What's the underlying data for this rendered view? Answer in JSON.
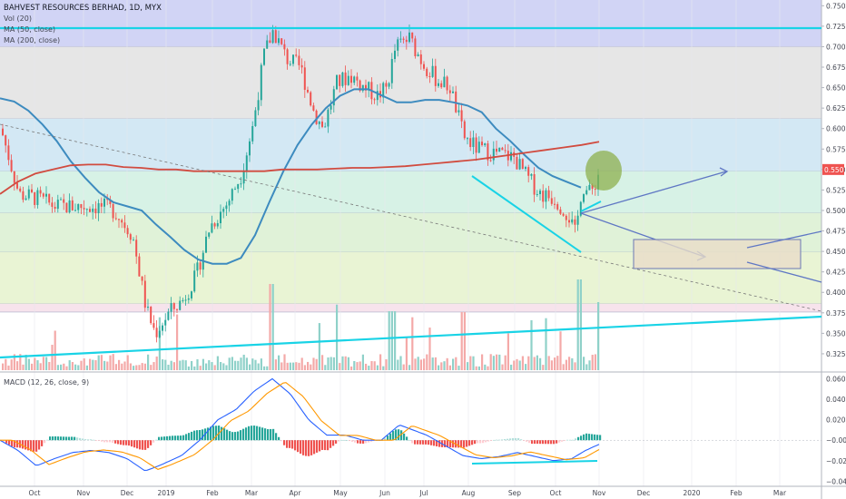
{
  "chart_data": {
    "type": "candlestick",
    "title": "BAHVEST RESOURCES BERHAD, 1D, MYX",
    "indicators": [
      "Vol (20)",
      "MA (50, close)",
      "MA (200, close)"
    ],
    "macd_label": "MACD (12, 26, close, 9)",
    "price_axis": {
      "ticks": [
        "0.750",
        "0.725",
        "0.700",
        "0.675",
        "0.650",
        "0.625",
        "0.600",
        "0.575",
        "0.550",
        "0.525",
        "0.500",
        "0.475",
        "0.450",
        "0.425",
        "0.400",
        "0.375",
        "0.350",
        "0.325"
      ],
      "last_price": "0.550",
      "ylim": [
        0.305,
        0.757
      ]
    },
    "macd_axis": {
      "ticks": [
        "0.060",
        "0.040",
        "0.020",
        "−0.000",
        "−0.020",
        "−0.040"
      ],
      "ylim": [
        -0.045,
        0.064
      ]
    },
    "time_axis": [
      "Oct",
      "Nov",
      "Dec",
      "2019",
      "Feb",
      "Mar",
      "Apr",
      "May",
      "Jun",
      "Jul",
      "Aug",
      "Sep",
      "Oct",
      "Nov",
      "Dec",
      "2020",
      "Feb",
      "Mar"
    ],
    "zones": [
      {
        "from": 0.7,
        "to": 0.757,
        "color": "#d1d4f5"
      },
      {
        "from": 0.612,
        "to": 0.7,
        "color": "#e6e6e6"
      },
      {
        "from": 0.548,
        "to": 0.612,
        "color": "#d3e8f4"
      },
      {
        "from": 0.497,
        "to": 0.548,
        "color": "#d7f2e6"
      },
      {
        "from": 0.449,
        "to": 0.497,
        "color": "#e0f2d8"
      },
      {
        "from": 0.386,
        "to": 0.449,
        "color": "#e9f4d4"
      },
      {
        "from": 0.376,
        "to": 0.386,
        "color": "#f7e3ec"
      }
    ],
    "ma50": [
      0.637,
      0.633,
      0.622,
      0.605,
      0.585,
      0.56,
      0.54,
      0.522,
      0.51,
      0.505,
      0.5,
      0.483,
      0.468,
      0.452,
      0.44,
      0.435,
      0.435,
      0.442,
      0.47,
      0.51,
      0.548,
      0.58,
      0.605,
      0.625,
      0.64,
      0.648,
      0.648,
      0.64,
      0.632,
      0.632,
      0.635,
      0.635,
      0.632,
      0.628,
      0.62,
      0.6,
      0.585,
      0.568,
      0.552,
      0.542,
      0.535,
      0.528
    ],
    "ma200": [
      0.52,
      0.535,
      0.545,
      0.55,
      0.555,
      0.556,
      0.556,
      0.553,
      0.552,
      0.55,
      0.55,
      0.548,
      0.548,
      0.548,
      0.548,
      0.548,
      0.55,
      0.55,
      0.55,
      0.551,
      0.552,
      0.552,
      0.553,
      0.554,
      0.556,
      0.558,
      0.56,
      0.562,
      0.565,
      0.568,
      0.571,
      0.574,
      0.577,
      0.58,
      0.584
    ]
  }
}
